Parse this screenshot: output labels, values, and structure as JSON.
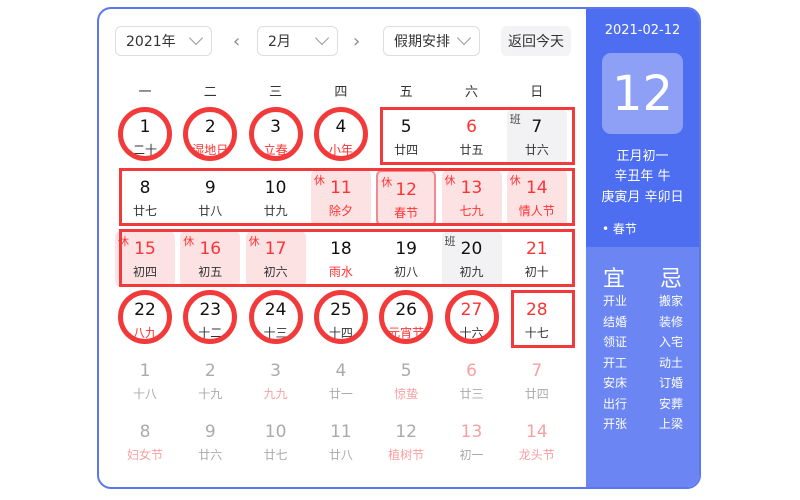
{
  "toolbar": {
    "year": "2021年",
    "month": "2月",
    "holiday": "假期安排",
    "today": "返回今天",
    "prev": "‹",
    "next": "›"
  },
  "weekdays": [
    "一",
    "二",
    "三",
    "四",
    "五",
    "六",
    "日"
  ],
  "cells": [
    {
      "n": "1",
      "l": "二十"
    },
    {
      "n": "2",
      "l": "湿地日",
      "lr": 1
    },
    {
      "n": "3",
      "l": "立春",
      "lr": 1
    },
    {
      "n": "4",
      "l": "小年",
      "lr": 1
    },
    {
      "n": "5",
      "l": "廿四"
    },
    {
      "n": "6",
      "l": "廿五",
      "nr": 1
    },
    {
      "n": "7",
      "l": "廿六",
      "b": "班",
      "t": "work"
    },
    {
      "n": "8",
      "l": "廿七"
    },
    {
      "n": "9",
      "l": "廿八"
    },
    {
      "n": "10",
      "l": "廿九"
    },
    {
      "n": "11",
      "l": "除夕",
      "b": "休",
      "t": "rest",
      "nr": 1,
      "lr": 1
    },
    {
      "n": "12",
      "l": "春节",
      "b": "休",
      "t": "rest",
      "nr": 1,
      "lr": 1,
      "sel": 1
    },
    {
      "n": "13",
      "l": "七九",
      "b": "休",
      "t": "rest",
      "nr": 1,
      "lr": 1
    },
    {
      "n": "14",
      "l": "情人节",
      "b": "休",
      "t": "rest",
      "nr": 1,
      "lr": 1
    },
    {
      "n": "15",
      "l": "初四",
      "b": "休",
      "t": "rest",
      "nr": 1
    },
    {
      "n": "16",
      "l": "初五",
      "b": "休",
      "t": "rest",
      "nr": 1
    },
    {
      "n": "17",
      "l": "初六",
      "b": "休",
      "t": "rest",
      "nr": 1
    },
    {
      "n": "18",
      "l": "雨水",
      "lr": 1
    },
    {
      "n": "19",
      "l": "初八"
    },
    {
      "n": "20",
      "l": "初九",
      "b": "班",
      "t": "work"
    },
    {
      "n": "21",
      "l": "初十",
      "nr": 1
    },
    {
      "n": "22",
      "l": "八九",
      "lr": 1
    },
    {
      "n": "23",
      "l": "十二"
    },
    {
      "n": "24",
      "l": "十三"
    },
    {
      "n": "25",
      "l": "十四"
    },
    {
      "n": "26",
      "l": "元宵节",
      "lr": 1
    },
    {
      "n": "27",
      "l": "十六",
      "nr": 1
    },
    {
      "n": "28",
      "l": "十七",
      "nr": 1
    },
    {
      "n": "1",
      "l": "十八",
      "f": 1
    },
    {
      "n": "2",
      "l": "十九",
      "f": 1
    },
    {
      "n": "3",
      "l": "九九",
      "f": 1,
      "lr": 1
    },
    {
      "n": "4",
      "l": "廿一",
      "f": 1
    },
    {
      "n": "5",
      "l": "惊蛰",
      "f": 1,
      "lr": 1
    },
    {
      "n": "6",
      "l": "廿三",
      "f": 1,
      "nr": 1
    },
    {
      "n": "7",
      "l": "廿四",
      "f": 1,
      "nr": 1
    },
    {
      "n": "8",
      "l": "妇女节",
      "f": 1,
      "lr": 1
    },
    {
      "n": "9",
      "l": "廿六",
      "f": 1
    },
    {
      "n": "10",
      "l": "廿七",
      "f": 1
    },
    {
      "n": "11",
      "l": "廿八",
      "f": 1
    },
    {
      "n": "12",
      "l": "植树节",
      "f": 1,
      "lr": 1
    },
    {
      "n": "13",
      "l": "初一",
      "f": 1,
      "nr": 1
    },
    {
      "n": "14",
      "l": "龙头节",
      "f": 1,
      "nr": 1,
      "lr": 1
    }
  ],
  "side": {
    "date": "2021-02-12",
    "day": "12",
    "lunar": "正月初一",
    "year": "辛丑年 牛",
    "ganzhi": "庚寅月 辛卯日",
    "festival": "• 春节",
    "yi_title": "宜",
    "ji_title": "忌",
    "yi": [
      "开业",
      "结婚",
      "领证",
      "开工",
      "安床",
      "出行",
      "开张"
    ],
    "ji": [
      "搬家",
      "装修",
      "入宅",
      "动土",
      "订婚",
      "安葬",
      "上梁"
    ]
  },
  "annotations": [
    {
      "type": "circle",
      "cells": [
        0
      ]
    },
    {
      "type": "circle",
      "cells": [
        1
      ]
    },
    {
      "type": "circle",
      "cells": [
        2
      ]
    },
    {
      "type": "circle",
      "cells": [
        3
      ]
    },
    {
      "type": "rect",
      "cells": [
        4,
        6
      ]
    },
    {
      "type": "rect",
      "cells": [
        7,
        13
      ]
    },
    {
      "type": "rect",
      "cells": [
        14,
        20
      ]
    },
    {
      "type": "circle",
      "cells": [
        21
      ]
    },
    {
      "type": "circle",
      "cells": [
        22
      ]
    },
    {
      "type": "circle",
      "cells": [
        23
      ]
    },
    {
      "type": "circle",
      "cells": [
        24
      ]
    },
    {
      "type": "circle",
      "cells": [
        25
      ]
    },
    {
      "type": "circle",
      "cells": [
        26
      ]
    },
    {
      "type": "rect",
      "cells": [
        27,
        27
      ]
    }
  ],
  "colors": {
    "accent": "#4e6ef2",
    "holiday_red": "#ff3333",
    "annotation": "#f23a3a"
  }
}
